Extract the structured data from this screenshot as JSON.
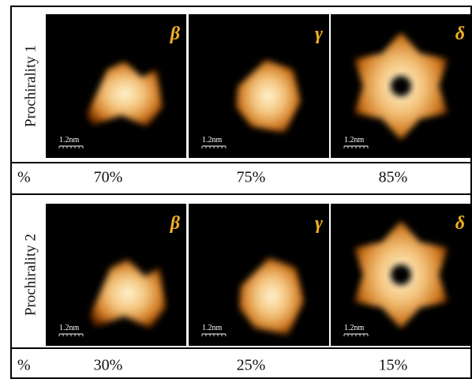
{
  "panels": [
    {
      "label": "Prochirality 1",
      "images": [
        {
          "symbol": "β",
          "scale": "1.2nm"
        },
        {
          "symbol": "γ",
          "scale": "1.2nm"
        },
        {
          "symbol": "δ",
          "scale": "1.2nm"
        }
      ],
      "percent_label": "%",
      "percents": [
        "70%",
        "75%",
        "85%"
      ]
    },
    {
      "label": "Prochirality 2",
      "images": [
        {
          "symbol": "β",
          "scale": "1.2nm"
        },
        {
          "symbol": "γ",
          "scale": "1.2nm"
        },
        {
          "symbol": "δ",
          "scale": "1.2nm"
        }
      ],
      "percent_label": "%",
      "percents": [
        "30%",
        "25%",
        "15%"
      ]
    }
  ]
}
